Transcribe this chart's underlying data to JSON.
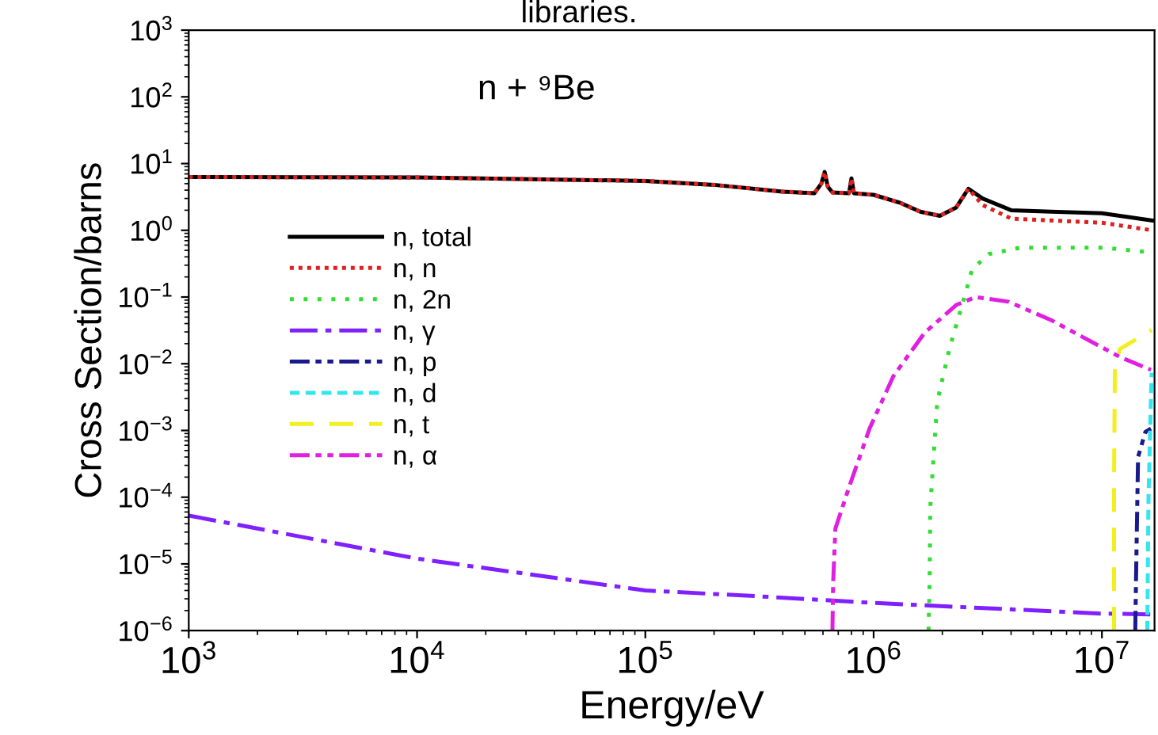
{
  "chart_data": {
    "type": "line",
    "title": "libraries.",
    "xlabel": "Energy/eV",
    "ylabel": "Cross Section/barns",
    "annotations": [
      "n + ⁹Be"
    ],
    "log": "xy",
    "grid": false,
    "legend": "left",
    "marker": "none",
    "xlim": [
      1000,
      17000000
    ],
    "ylim": [
      1e-06,
      1000
    ],
    "xticks": [
      {
        "value": 1000,
        "label": "10$^{3}$"
      },
      {
        "value": 10000,
        "label": "10$^{4}$"
      },
      {
        "value": 100000,
        "label": "10$^{5}$"
      },
      {
        "value": 1000000,
        "label": "10$^{6}$"
      },
      {
        "value": 10000000,
        "label": "10$^{7}$"
      }
    ],
    "yticks": [
      {
        "value": 1e-06,
        "label": "10$^{−6}$"
      },
      {
        "value": 1e-05,
        "label": "10$^{−5}$"
      },
      {
        "value": 0.0001,
        "label": "10$^{−4}$"
      },
      {
        "value": 0.001,
        "label": "10$^{−3}$"
      },
      {
        "value": 0.01,
        "label": "10$^{−2}$"
      },
      {
        "value": 0.1,
        "label": "10$^{−1}$"
      },
      {
        "value": 1,
        "label": "10$^{0}$"
      },
      {
        "value": 10,
        "label": "10$^{1}$"
      },
      {
        "value": 100,
        "label": "10$^{2}$"
      },
      {
        "value": 1000,
        "label": "10$^{3}$"
      }
    ],
    "series": [
      {
        "name": "n, total",
        "color": "#000000",
        "line_style": "solid",
        "x": [
          1000,
          10000,
          100000,
          200000,
          400000,
          550000,
          590000,
          610000,
          630000,
          660000,
          780000,
          800000,
          820000,
          1000000,
          1300000,
          1600000,
          1950000,
          2300000,
          2600000,
          3000000,
          4000000,
          6000000,
          10000000,
          16600000
        ],
        "values": [
          6.3,
          6.2,
          5.5,
          4.8,
          3.8,
          3.6,
          5,
          7.5,
          4.5,
          3.7,
          3.6,
          6,
          3.6,
          3.4,
          2.6,
          1.9,
          1.65,
          2.2,
          4.2,
          3.0,
          2.0,
          1.9,
          1.8,
          1.4
        ]
      },
      {
        "name": "n, n",
        "color": "#e02020",
        "line_style": "dotted",
        "x": [
          1000,
          10000,
          100000,
          200000,
          400000,
          550000,
          590000,
          610000,
          630000,
          660000,
          780000,
          800000,
          820000,
          1000000,
          1300000,
          1600000,
          1950000,
          2300000,
          2600000,
          3000000,
          4000000,
          10000000,
          16600000
        ],
        "values": [
          6.3,
          6.2,
          5.5,
          4.8,
          3.8,
          3.6,
          5,
          7.5,
          4.5,
          3.7,
          3.6,
          6,
          3.6,
          3.4,
          2.6,
          1.9,
          1.65,
          2.2,
          4.2,
          2.4,
          1.5,
          1.3,
          1.0
        ]
      },
      {
        "name": "n, 2n",
        "color": "#33dd33",
        "line_style": "sparse_dotted",
        "x": [
          1740000,
          1760000,
          1770000,
          1900000,
          2150000,
          2500000,
          2700000,
          3200000,
          4400000,
          10100000,
          16000000
        ],
        "values": [
          1e-06,
          5.4e-06,
          7e-05,
          0.0027,
          0.017,
          0.1,
          0.26,
          0.44,
          0.55,
          0.55,
          0.47
        ]
      },
      {
        "name": "n, γ",
        "color": "#8020ff",
        "line_style": "dashdot",
        "x": [
          1000,
          10000,
          100000,
          300000,
          1000000,
          10000000,
          17000000
        ],
        "values": [
          5.3e-05,
          1.2e-05,
          4e-06,
          3.3e-06,
          2.6e-06,
          1.8e-06,
          1.75e-06
        ]
      },
      {
        "name": "n, p",
        "color": "#1a1a8c",
        "line_style": "dashdotdot",
        "x": [
          14000000,
          14100000,
          14400000,
          15500000,
          16400000
        ],
        "values": [
          1e-06,
          5.4e-06,
          0.0004,
          0.00095,
          0.00107
        ]
      },
      {
        "name": "n, d",
        "color": "#33e5f0",
        "line_style": "dashed",
        "x": [
          15800000,
          16000000,
          16500000
        ],
        "values": [
          1e-06,
          0.0001,
          0.0073
        ]
      },
      {
        "name": "n, t",
        "color": "#f0f020",
        "line_style": "long_dashed",
        "x": [
          11300000,
          11300000,
          11400000,
          12000000,
          16500000
        ],
        "values": [
          1e-06,
          0.0002,
          0.0095,
          0.0166,
          0.032
        ]
      },
      {
        "name": "n, α",
        "color": "#e020e0",
        "line_style": "dashdotdot",
        "x": [
          660000,
          665000,
          680000,
          780000,
          960000,
          1220000,
          1670000,
          2300000,
          2800000,
          3900000,
          6000000,
          12000000,
          16400000
        ],
        "values": [
          1e-06,
          5.3e-06,
          3.4e-05,
          0.00014,
          0.00107,
          0.0065,
          0.029,
          0.076,
          0.1,
          0.085,
          0.045,
          0.0126,
          0.0081
        ]
      }
    ]
  }
}
